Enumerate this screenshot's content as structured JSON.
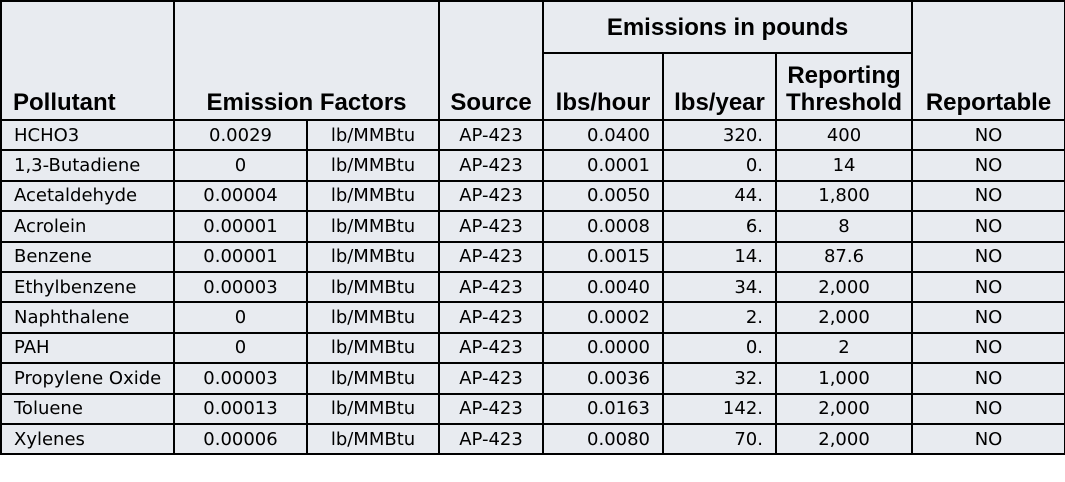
{
  "header": {
    "group_label": "Emissions in pounds",
    "pollutant": "Pollutant",
    "emission_factors": "Emission Factors",
    "source": "Source",
    "lbs_hour": "lbs/hour",
    "lbs_year": "lbs/year",
    "reporting_threshold_line1": "Reporting",
    "reporting_threshold_line2": "Threshold",
    "reportable": "Reportable"
  },
  "rows": [
    {
      "pollutant": "HCHO3",
      "factor": "0.0029",
      "unit": "lb/MMBtu",
      "source": "AP-423",
      "lbs_hour": "0.0400",
      "lbs_year": "320.",
      "threshold": "400",
      "reportable": "NO"
    },
    {
      "pollutant": "1,3-Butadiene",
      "factor": "0",
      "unit": "lb/MMBtu",
      "source": "AP-423",
      "lbs_hour": "0.0001",
      "lbs_year": "0.",
      "threshold": "14",
      "reportable": "NO"
    },
    {
      "pollutant": "Acetaldehyde",
      "factor": "0.00004",
      "unit": "lb/MMBtu",
      "source": "AP-423",
      "lbs_hour": "0.0050",
      "lbs_year": "44.",
      "threshold": "1,800",
      "reportable": "NO"
    },
    {
      "pollutant": "Acrolein",
      "factor": "0.00001",
      "unit": "lb/MMBtu",
      "source": "AP-423",
      "lbs_hour": "0.0008",
      "lbs_year": "6.",
      "threshold": "8",
      "reportable": "NO"
    },
    {
      "pollutant": "Benzene",
      "factor": "0.00001",
      "unit": "lb/MMBtu",
      "source": "AP-423",
      "lbs_hour": "0.0015",
      "lbs_year": "14.",
      "threshold": "87.6",
      "reportable": "NO"
    },
    {
      "pollutant": "Ethylbenzene",
      "factor": "0.00003",
      "unit": "lb/MMBtu",
      "source": "AP-423",
      "lbs_hour": "0.0040",
      "lbs_year": "34.",
      "threshold": "2,000",
      "reportable": "NO"
    },
    {
      "pollutant": "Naphthalene",
      "factor": "0",
      "unit": "lb/MMBtu",
      "source": "AP-423",
      "lbs_hour": "0.0002",
      "lbs_year": "2.",
      "threshold": "2,000",
      "reportable": "NO"
    },
    {
      "pollutant": "PAH",
      "factor": "0",
      "unit": "lb/MMBtu",
      "source": "AP-423",
      "lbs_hour": "0.0000",
      "lbs_year": "0.",
      "threshold": "2",
      "reportable": "NO"
    },
    {
      "pollutant": "Propylene Oxide",
      "factor": "0.00003",
      "unit": "lb/MMBtu",
      "source": "AP-423",
      "lbs_hour": "0.0036",
      "lbs_year": "32.",
      "threshold": "1,000",
      "reportable": "NO"
    },
    {
      "pollutant": "Toluene",
      "factor": "0.00013",
      "unit": "lb/MMBtu",
      "source": "AP-423",
      "lbs_hour": "0.0163",
      "lbs_year": "142.",
      "threshold": "2,000",
      "reportable": "NO"
    },
    {
      "pollutant": "Xylenes",
      "factor": "0.00006",
      "unit": "lb/MMBtu",
      "source": "AP-423",
      "lbs_hour": "0.0080",
      "lbs_year": "70.",
      "threshold": "2,000",
      "reportable": "NO"
    }
  ]
}
